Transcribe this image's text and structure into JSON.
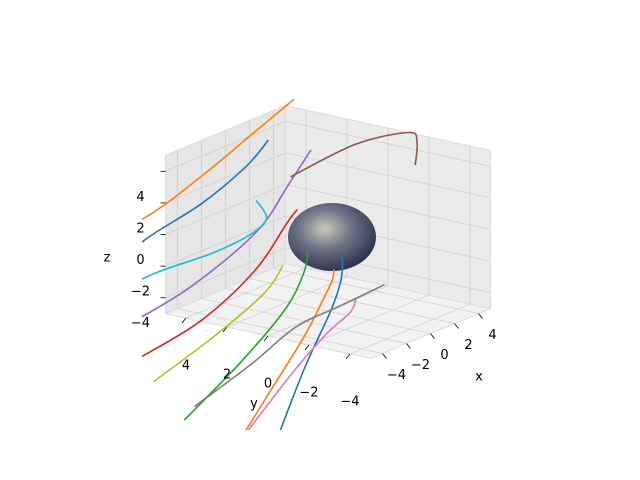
{
  "chart_data": {
    "type": "line3d",
    "xlabel": "x",
    "ylabel": "y",
    "zlabel": "z",
    "xlim": [
      -5,
      5
    ],
    "ylim": [
      -5,
      5
    ],
    "zlim": [
      -5,
      5
    ],
    "xticks": [
      {
        "value": -4,
        "label": "−4"
      },
      {
        "value": -2,
        "label": "−2"
      },
      0,
      2,
      4
    ],
    "yticks": [
      {
        "value": -4,
        "label": "−4"
      },
      {
        "value": -2,
        "label": "−2"
      },
      0,
      2,
      4
    ],
    "zticks": [
      {
        "value": -4,
        "label": "−4"
      },
      {
        "value": -2,
        "label": "−2"
      },
      0,
      2,
      4
    ],
    "grid": true,
    "series": [
      {
        "color": "#1f77b4",
        "x": [
          -6,
          -4,
          -2,
          -1,
          -0.5,
          -0.3
        ],
        "y": [
          -1,
          -1.2,
          -1.3,
          -1.2,
          -1,
          -0.8
        ],
        "z": [
          -11,
          -7,
          -4,
          -2.5,
          -1.5,
          -1
        ]
      },
      {
        "color": "#ff7f0e",
        "x": [
          -6,
          -4,
          -2,
          -1,
          0,
          0.5
        ],
        "y": [
          1,
          0.5,
          0,
          -0.3,
          -0.2,
          0
        ],
        "z": [
          -12,
          -9,
          -6,
          -4,
          -3,
          -2.5
        ]
      },
      {
        "color": "#e377c2",
        "x": [
          -6,
          -3,
          -1,
          0.5,
          1.5
        ],
        "y": [
          0.5,
          0,
          -0.5,
          -0.8,
          -0.5
        ],
        "z": [
          -11,
          -8,
          -6,
          -5,
          -4.5
        ]
      },
      {
        "color": "#7f7f7f",
        "x": [
          -6,
          -3,
          -1,
          1,
          3
        ],
        "y": [
          3,
          2,
          1,
          0,
          -1
        ],
        "z": [
          -10,
          -8,
          -6,
          -5,
          -4
        ]
      },
      {
        "color": "#2ca02c",
        "x": [
          -6,
          -3,
          -1,
          0,
          0.5,
          1
        ],
        "y": [
          3.5,
          2.5,
          1.5,
          1.2,
          1.3,
          1.6
        ],
        "z": [
          -11,
          -8,
          -5,
          -3,
          -2,
          -2
        ]
      },
      {
        "color": "#bcbd22",
        "x": [
          -6,
          -3,
          -1,
          0,
          0.5
        ],
        "y": [
          5,
          4,
          3,
          2.7,
          2.5
        ],
        "z": [
          -9,
          -7,
          -5,
          -4,
          -3
        ]
      },
      {
        "color": "#d62728",
        "x": [
          -6,
          -3,
          -1,
          0,
          0
        ],
        "y": [
          6,
          4.5,
          3,
          2,
          1.5
        ],
        "z": [
          -8,
          -6,
          -3,
          0,
          1
        ]
      },
      {
        "color": "#9467bd",
        "x": [
          -6,
          -3,
          0,
          1,
          2
        ],
        "y": [
          6.5,
          5,
          3.5,
          2.5,
          2
        ],
        "z": [
          -6,
          -4,
          -1,
          2,
          4
        ]
      },
      {
        "color": "#17becf",
        "x": [
          -6,
          -4,
          -2,
          -0.5,
          0,
          0
        ],
        "y": [
          7,
          6,
          4.5,
          3.5,
          3,
          3.5
        ],
        "z": [
          -4,
          -3,
          -2,
          -1,
          0,
          1
        ]
      },
      {
        "color": "#1f77b4",
        "x": [
          -6,
          -4,
          -2,
          0,
          1
        ],
        "y": [
          7.5,
          6.5,
          5,
          4,
          3.5
        ],
        "z": [
          -3,
          -1,
          1,
          3,
          4.5
        ]
      },
      {
        "color": "#ff7f0e",
        "x": [
          -6,
          -3,
          0,
          2,
          4
        ],
        "y": [
          8,
          7,
          6,
          5,
          4
        ],
        "z": [
          -1,
          0,
          2,
          4,
          6
        ]
      },
      {
        "color": "#8c564b",
        "x": [
          2,
          4,
          5,
          4,
          3
        ],
        "y": [
          3,
          1,
          -1,
          -2,
          -2.5
        ],
        "z": [
          2,
          4,
          5,
          5,
          4
        ]
      },
      {
        "color": "#17becf",
        "x": [
          -6,
          -5.5
        ],
        "y": [
          9,
          8.5
        ],
        "z": [
          6,
          7
        ]
      }
    ]
  }
}
